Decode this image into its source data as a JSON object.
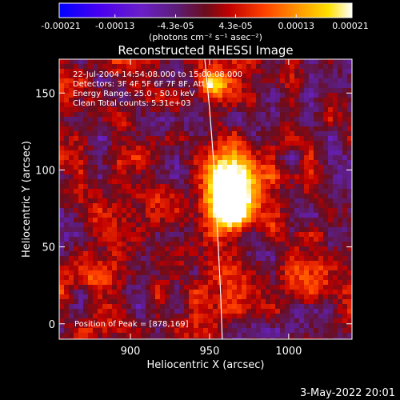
{
  "colorbar": {
    "tick_labels": [
      "-0.00021",
      "-0.00013",
      "-4.3e-05",
      "4.3e-05",
      "0.00013",
      "0.00021"
    ],
    "tick_values": [
      -0.00021,
      -0.00013,
      -4.3e-05,
      4.3e-05,
      0.00013,
      0.00021
    ],
    "range": [
      -0.00021,
      0.00021
    ],
    "units_label": "(photons cm⁻² s⁻¹ asec⁻²)",
    "colormap": [
      "#0000ff",
      "#6000e0",
      "#7a2ab0",
      "#8f1f3c",
      "#c80000",
      "#ff3a00",
      "#ff9200",
      "#ffd200",
      "#ffffff"
    ]
  },
  "chart_data": {
    "type": "heatmap",
    "title": "Reconstructed RHESSI Image",
    "xlabel": "Heliocentric X (arcsec)",
    "ylabel": "Heliocentric Y (arcsec)",
    "xlim": [
      855,
      1040
    ],
    "ylim": [
      -10,
      172
    ],
    "x_ticks": [
      900,
      950,
      1000
    ],
    "y_ticks": [
      0,
      50,
      100,
      150
    ],
    "x_tick_labels": [
      "900",
      "950",
      "1000"
    ],
    "y_tick_labels": [
      "0",
      "50",
      "100",
      "150"
    ],
    "grid": false,
    "peak_position": [
      878,
      169
    ],
    "limb_curve": [
      [
        947,
        172
      ],
      [
        950,
        140
      ],
      [
        953,
        100
      ],
      [
        955,
        60
      ],
      [
        957,
        20
      ],
      [
        958,
        -10
      ]
    ],
    "value_range": [
      -0.00021,
      0.00021
    ],
    "emission_sources": [
      {
        "x": 962,
        "y": 90,
        "sx": 12,
        "sy": 14,
        "amp": 1.6
      },
      {
        "x": 965,
        "y": 72,
        "sx": 10,
        "sy": 8,
        "amp": 1.3
      },
      {
        "x": 952,
        "y": 155,
        "sx": 6,
        "sy": 6,
        "amp": 1.0
      },
      {
        "x": 1020,
        "y": 35,
        "sx": 10,
        "sy": 10,
        "amp": 0.8
      },
      {
        "x": 880,
        "y": 30,
        "sx": 10,
        "sy": 8,
        "amp": 0.6
      }
    ]
  },
  "info": {
    "line1": "22-Jul-2004 14:54:08.000 to 15:00:08.000",
    "line2": "Detectors: 3F 4F 5F 6F 7F 8F, Att 0",
    "line3": "Energy Range: 25.0 - 50.0 keV",
    "line4": "Clean     Total counts: 5.31e+03"
  },
  "peak_label": "Position of Peak = [878,169]",
  "timestamp": "3-May-2022 20:01"
}
